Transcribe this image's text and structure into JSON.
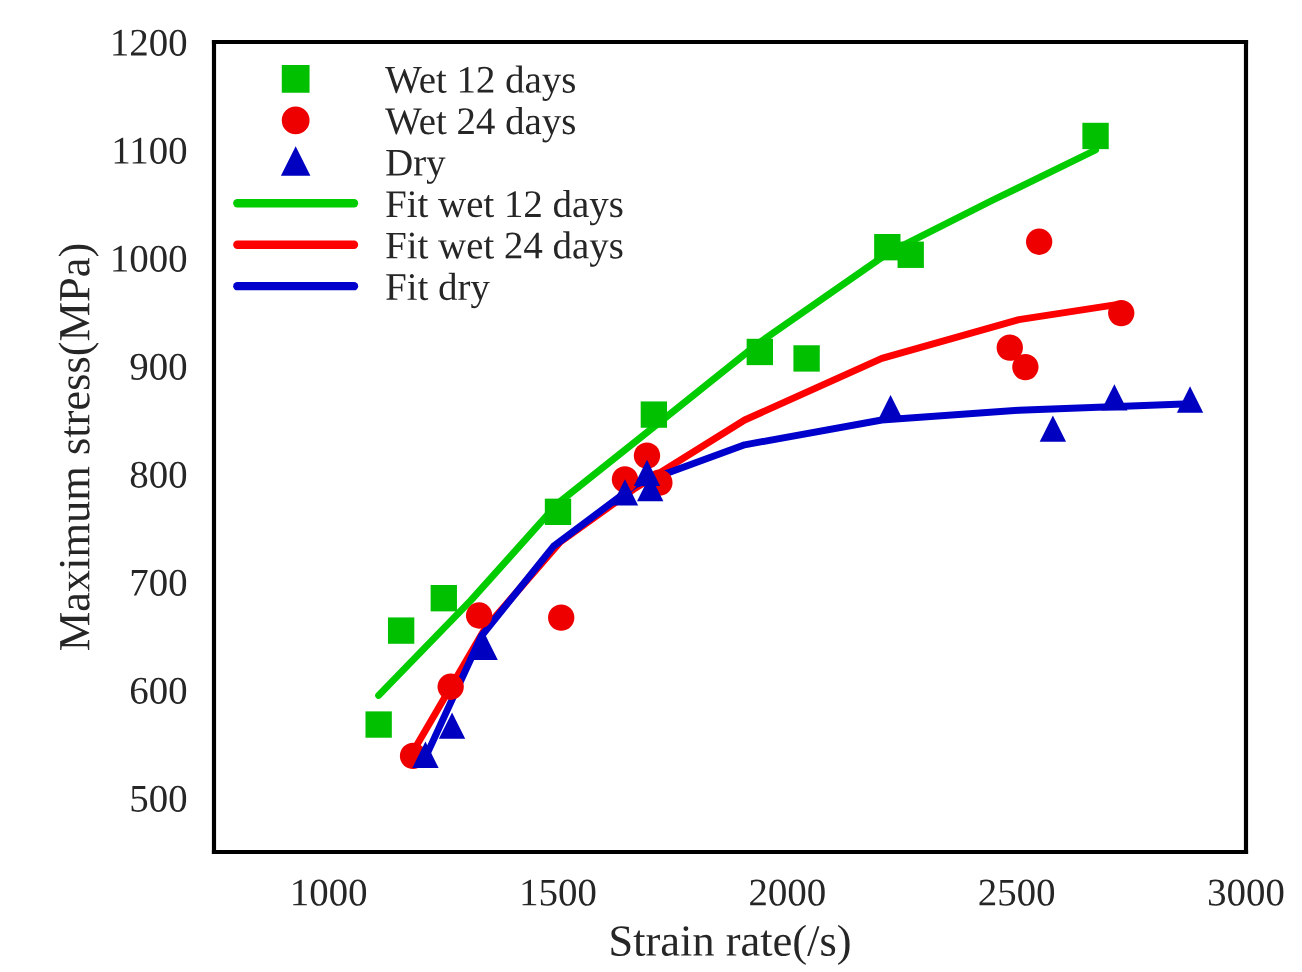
{
  "chart_data": {
    "type": "scatter",
    "xlabel": "Strain rate(/s)",
    "ylabel": "Maximum stress(MPa)",
    "xlim": [
      750,
      3000
    ],
    "xticks": [
      1000,
      1500,
      2000,
      2500,
      3000
    ],
    "ylim": [
      450,
      1200
    ],
    "yticks": [
      500,
      600,
      700,
      800,
      900,
      1000,
      1100,
      1200
    ],
    "grid": false,
    "legend": "top left",
    "series": [
      {
        "name": "Wet 12 days",
        "marker": "square",
        "color": "#00c000",
        "x": [
          1109,
          1158,
          1251,
          1500,
          1709,
          1940,
          2042,
          2218,
          2269,
          2672
        ],
        "values": [
          568,
          655,
          685,
          765,
          855,
          913,
          907,
          1010,
          1003,
          1113
        ]
      },
      {
        "name": "Wet 24 days",
        "marker": "circle",
        "color": "#ee0000",
        "x": [
          1184,
          1266,
          1328,
          1507,
          1646,
          1694,
          1721,
          2485,
          2519,
          2549,
          2728
        ],
        "values": [
          539,
          603,
          669,
          667,
          795,
          817,
          792,
          917,
          899,
          1015,
          949
        ]
      },
      {
        "name": "Dry",
        "marker": "triangle",
        "color": "#0000c0",
        "x": [
          1211,
          1269,
          1340,
          1646,
          1694,
          1701,
          2225,
          2579,
          2713,
          2878
        ],
        "values": [
          540,
          567,
          640,
          783,
          801,
          787,
          861,
          842,
          871,
          869
        ]
      },
      {
        "name": "Fit wet 12 days",
        "type": "line",
        "line_style": "solid",
        "color": "#00cc00",
        "x": [
          1109,
          1310,
          1500,
          1728,
          1937,
          2221,
          2445,
          2672
        ],
        "values": [
          595,
          683,
          773,
          850,
          921,
          1005,
          1053,
          1100
        ]
      },
      {
        "name": "Fit wet 24 days",
        "type": "line",
        "line_style": "solid",
        "color": "#ff0000",
        "x": [
          1184,
          1341,
          1505,
          1669,
          1907,
          2206,
          2505,
          2721
        ],
        "values": [
          543,
          657,
          737,
          787,
          850,
          907,
          943,
          957
        ]
      },
      {
        "name": "Fit dry",
        "type": "line",
        "line_style": "solid",
        "color": "#0000cc",
        "x": [
          1206,
          1333,
          1490,
          1669,
          1907,
          2206,
          2505,
          2878
        ],
        "values": [
          533,
          650,
          733,
          790,
          827,
          850,
          859,
          865
        ]
      }
    ]
  }
}
